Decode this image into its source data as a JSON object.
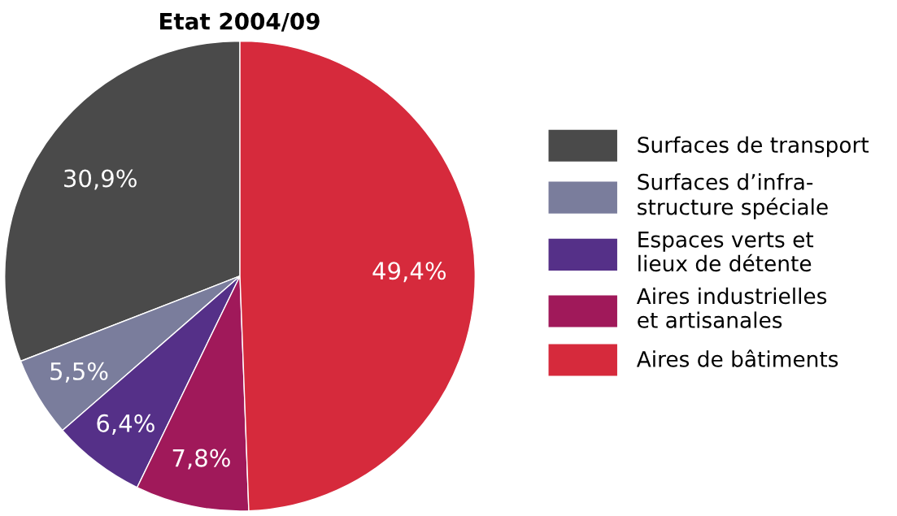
{
  "chart_data": {
    "type": "pie",
    "title": "Etat 2004/09",
    "categories": [
      "Surfaces de transport",
      "Surfaces d’infra-\nstructure spéciale",
      "Espaces verts et\nlieux de détente",
      "Aires industrielles\net artisanales",
      "Aires de bâtiments"
    ],
    "values": [
      30.9,
      5.5,
      6.4,
      7.8,
      49.4
    ],
    "colors": [
      "#4a4a4a",
      "#7a7d9c",
      "#553088",
      "#a0195a",
      "#d62a3c"
    ],
    "value_labels": [
      "30,9%",
      "5,5%",
      "6,4%",
      "7,8%",
      "49,4%"
    ],
    "legend": "right"
  }
}
